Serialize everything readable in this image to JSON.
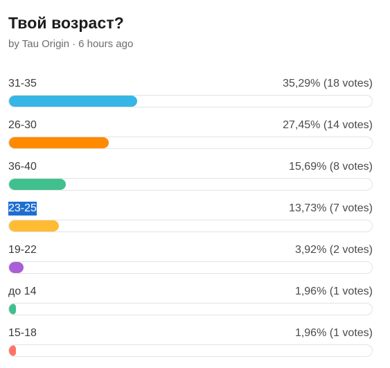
{
  "poll": {
    "title": "Твой возраст?",
    "author": "by Tau Origin",
    "separator": "·",
    "time": "6 hours ago",
    "options": [
      {
        "label": "31-35",
        "result": "35,29% (18 votes)",
        "percent": 35.29,
        "color": "#35b6e6",
        "selected": false
      },
      {
        "label": "26-30",
        "result": "27,45% (14 votes)",
        "percent": 27.45,
        "color": "#ff8a00",
        "selected": false
      },
      {
        "label": "36-40",
        "result": "15,69% (8 votes)",
        "percent": 15.69,
        "color": "#40c08f",
        "selected": false
      },
      {
        "label": "23-25",
        "result": "13,73% (7 votes)",
        "percent": 13.73,
        "color": "#ffbc33",
        "selected": true
      },
      {
        "label": "19-22",
        "result": "3,92% (2 votes)",
        "percent": 3.92,
        "color": "#a95fd6",
        "selected": false
      },
      {
        "label": "до 14",
        "result": "1,96% (1 votes)",
        "percent": 1.96,
        "color": "#40c08f",
        "selected": false
      },
      {
        "label": "15-18",
        "result": "1,96% (1 votes)",
        "percent": 1.96,
        "color": "#ff7466",
        "selected": false
      }
    ]
  }
}
